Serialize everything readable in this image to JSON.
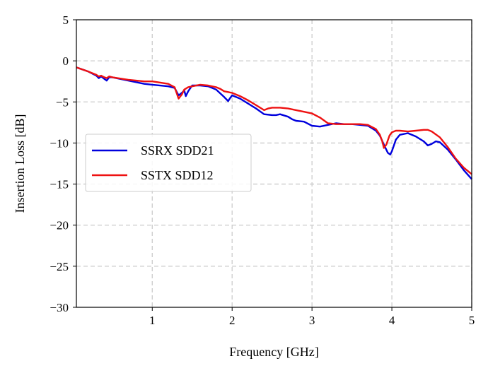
{
  "chart_data": {
    "type": "line",
    "xlabel": "Frequency [GHz]",
    "ylabel": "Insertion Loss [dB]",
    "xlim": [
      0.05,
      5
    ],
    "ylim": [
      -30,
      5
    ],
    "xticks": [
      1,
      2,
      3,
      4,
      5
    ],
    "yticks": [
      5,
      0,
      -5,
      -10,
      -15,
      -20,
      -25,
      -30
    ],
    "grid": true,
    "legend_position": "center-left",
    "series": [
      {
        "name": "SSRX SDD21",
        "color": "#0000dd",
        "x": [
          0.05,
          0.2,
          0.3,
          0.33,
          0.36,
          0.4,
          0.43,
          0.46,
          0.5,
          0.7,
          0.9,
          1.0,
          1.2,
          1.28,
          1.33,
          1.37,
          1.4,
          1.42,
          1.45,
          1.5,
          1.6,
          1.7,
          1.8,
          1.9,
          1.95,
          1.97,
          2.0,
          2.1,
          2.2,
          2.3,
          2.4,
          2.5,
          2.55,
          2.6,
          2.7,
          2.75,
          2.8,
          2.9,
          3.0,
          3.1,
          3.2,
          3.3,
          3.4,
          3.5,
          3.6,
          3.7,
          3.8,
          3.85,
          3.9,
          3.95,
          3.98,
          4.0,
          4.05,
          4.1,
          4.2,
          4.3,
          4.4,
          4.45,
          4.5,
          4.55,
          4.6,
          4.7,
          4.8,
          4.9,
          5.0
        ],
        "y": [
          -0.8,
          -1.3,
          -1.8,
          -2.1,
          -1.9,
          -2.2,
          -2.4,
          -2.0,
          -2.0,
          -2.4,
          -2.8,
          -2.9,
          -3.1,
          -3.3,
          -4.2,
          -3.9,
          -3.6,
          -4.3,
          -3.7,
          -3.0,
          -3.0,
          -3.1,
          -3.5,
          -4.4,
          -4.9,
          -4.6,
          -4.2,
          -4.6,
          -5.2,
          -5.8,
          -6.5,
          -6.6,
          -6.6,
          -6.5,
          -6.8,
          -7.1,
          -7.3,
          -7.4,
          -7.9,
          -8.0,
          -7.8,
          -7.6,
          -7.7,
          -7.7,
          -7.8,
          -7.9,
          -8.5,
          -9.1,
          -10.2,
          -11.2,
          -11.4,
          -11.0,
          -9.6,
          -9.0,
          -8.8,
          -9.2,
          -9.8,
          -10.3,
          -10.1,
          -9.8,
          -9.9,
          -10.8,
          -12.0,
          -13.3,
          -14.4
        ]
      },
      {
        "name": "SSTX SDD12",
        "color": "#ee1111",
        "x": [
          0.05,
          0.2,
          0.3,
          0.33,
          0.36,
          0.4,
          0.43,
          0.46,
          0.5,
          0.7,
          0.9,
          1.0,
          1.2,
          1.28,
          1.33,
          1.37,
          1.4,
          1.45,
          1.5,
          1.6,
          1.7,
          1.8,
          1.85,
          1.9,
          1.95,
          2.0,
          2.1,
          2.2,
          2.3,
          2.4,
          2.45,
          2.5,
          2.6,
          2.7,
          2.8,
          2.9,
          3.0,
          3.1,
          3.2,
          3.3,
          3.4,
          3.5,
          3.6,
          3.7,
          3.8,
          3.85,
          3.88,
          3.9,
          3.93,
          3.97,
          4.0,
          4.05,
          4.1,
          4.2,
          4.3,
          4.4,
          4.45,
          4.5,
          4.6,
          4.7,
          4.8,
          4.9,
          5.0
        ],
        "y": [
          -0.8,
          -1.3,
          -1.7,
          -1.9,
          -1.8,
          -2.0,
          -2.1,
          -1.9,
          -2.0,
          -2.3,
          -2.5,
          -2.5,
          -2.8,
          -3.2,
          -4.6,
          -4.1,
          -3.5,
          -3.2,
          -3.1,
          -2.9,
          -3.0,
          -3.2,
          -3.4,
          -3.7,
          -3.8,
          -3.9,
          -4.3,
          -4.8,
          -5.4,
          -6.0,
          -5.8,
          -5.7,
          -5.7,
          -5.8,
          -6.0,
          -6.2,
          -6.4,
          -6.9,
          -7.6,
          -7.7,
          -7.7,
          -7.7,
          -7.7,
          -7.8,
          -8.3,
          -9.0,
          -9.8,
          -10.6,
          -10.2,
          -9.1,
          -8.7,
          -8.5,
          -8.5,
          -8.6,
          -8.5,
          -8.4,
          -8.4,
          -8.6,
          -9.3,
          -10.5,
          -11.9,
          -13.0,
          -13.8
        ]
      }
    ]
  }
}
